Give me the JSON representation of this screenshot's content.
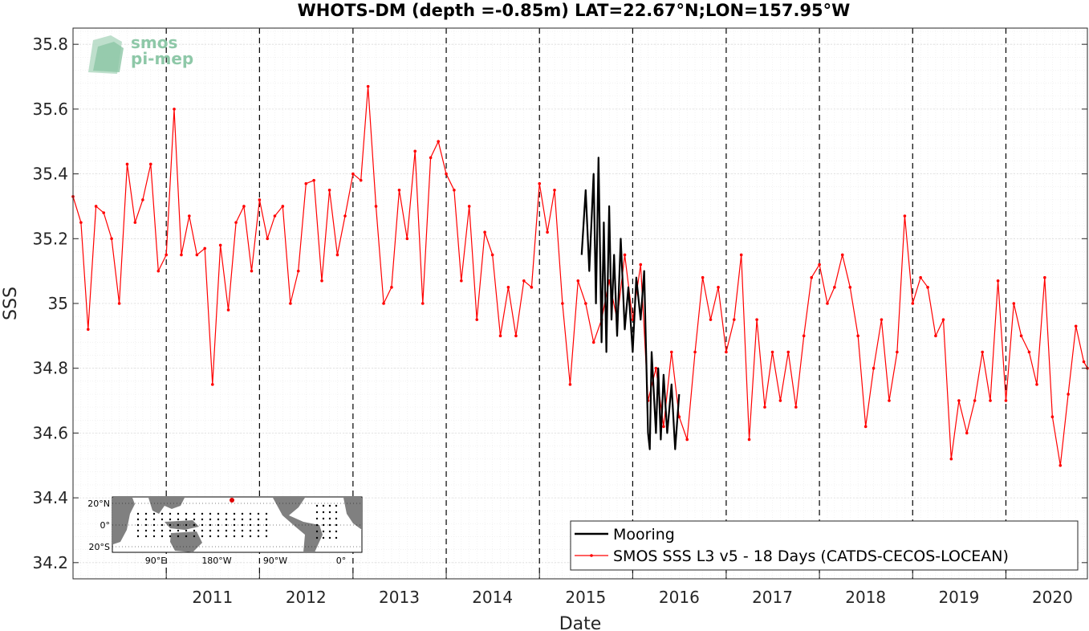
{
  "chart_data": {
    "type": "line",
    "title": "WHOTS-DM (depth =-0.85m) LAT=22.67°N;LON=157.95°W",
    "xlabel": "Date",
    "ylabel": "SSS",
    "xlim": [
      "2010-01-01",
      "2020-11-15"
    ],
    "ylim": [
      34.15,
      35.85
    ],
    "x_ticks": [
      "2011",
      "2012",
      "2013",
      "2014",
      "2015",
      "2016",
      "2017",
      "2018",
      "2019",
      "2020"
    ],
    "y_ticks": [
      "34.2",
      "34.4",
      "34.6",
      "34.8",
      "35",
      "35.2",
      "35.4",
      "35.6",
      "35.8"
    ],
    "grid": true,
    "year_markers": "dashed vertical line at each 1 January",
    "legend_position": "bottom-right",
    "logo": {
      "line1": "smos",
      "line2": "pi-mep"
    },
    "inset_map": {
      "lat_labels": [
        "20°N",
        "0°",
        "20°S"
      ],
      "lon_labels": [
        "90°E",
        "180°W",
        "90°W",
        "0°"
      ]
    },
    "series": [
      {
        "name": "Mooring",
        "color": "#000000",
        "style": "solid thick line",
        "points": [
          [
            "2015-06-15",
            35.15
          ],
          [
            "2015-07-01",
            35.35
          ],
          [
            "2015-07-15",
            35.1
          ],
          [
            "2015-08-01",
            35.4
          ],
          [
            "2015-08-10",
            35.0
          ],
          [
            "2015-08-20",
            35.45
          ],
          [
            "2015-09-01",
            34.88
          ],
          [
            "2015-09-10",
            35.25
          ],
          [
            "2015-09-20",
            34.85
          ],
          [
            "2015-10-01",
            35.3
          ],
          [
            "2015-10-10",
            34.95
          ],
          [
            "2015-10-20",
            35.15
          ],
          [
            "2015-11-01",
            34.9
          ],
          [
            "2015-11-15",
            35.2
          ],
          [
            "2015-12-01",
            34.92
          ],
          [
            "2015-12-15",
            35.05
          ],
          [
            "2016-01-01",
            34.85
          ],
          [
            "2016-01-15",
            35.08
          ],
          [
            "2016-02-01",
            34.95
          ],
          [
            "2016-02-15",
            35.1
          ],
          [
            "2016-03-01",
            34.6
          ],
          [
            "2016-03-08",
            34.55
          ],
          [
            "2016-03-15",
            34.85
          ],
          [
            "2016-04-01",
            34.6
          ],
          [
            "2016-04-10",
            34.8
          ],
          [
            "2016-04-20",
            34.58
          ],
          [
            "2016-05-01",
            34.78
          ],
          [
            "2016-05-15",
            34.6
          ],
          [
            "2016-06-01",
            34.75
          ],
          [
            "2016-06-15",
            34.55
          ],
          [
            "2016-07-01",
            34.72
          ]
        ]
      },
      {
        "name": "SMOS SSS L3 v5 - 18 Days (CATDS-CECOS-LOCEAN)",
        "color": "#ff0000",
        "style": "line with dot markers",
        "points": [
          [
            "2010-01-01",
            35.33
          ],
          [
            "2010-02-01",
            35.25
          ],
          [
            "2010-03-01",
            34.92
          ],
          [
            "2010-04-01",
            35.3
          ],
          [
            "2010-05-01",
            35.28
          ],
          [
            "2010-06-01",
            35.2
          ],
          [
            "2010-07-01",
            35.0
          ],
          [
            "2010-08-01",
            35.43
          ],
          [
            "2010-09-01",
            35.25
          ],
          [
            "2010-10-01",
            35.32
          ],
          [
            "2010-11-01",
            35.43
          ],
          [
            "2010-12-01",
            35.1
          ],
          [
            "2011-01-01",
            35.15
          ],
          [
            "2011-02-01",
            35.6
          ],
          [
            "2011-03-01",
            35.15
          ],
          [
            "2011-04-01",
            35.27
          ],
          [
            "2011-05-01",
            35.15
          ],
          [
            "2011-06-01",
            35.17
          ],
          [
            "2011-07-01",
            34.75
          ],
          [
            "2011-08-01",
            35.18
          ],
          [
            "2011-09-01",
            34.98
          ],
          [
            "2011-10-01",
            35.25
          ],
          [
            "2011-11-01",
            35.3
          ],
          [
            "2011-12-01",
            35.1
          ],
          [
            "2012-01-01",
            35.32
          ],
          [
            "2012-02-01",
            35.2
          ],
          [
            "2012-03-01",
            35.27
          ],
          [
            "2012-04-01",
            35.3
          ],
          [
            "2012-05-01",
            35.0
          ],
          [
            "2012-06-01",
            35.1
          ],
          [
            "2012-07-01",
            35.37
          ],
          [
            "2012-08-01",
            35.38
          ],
          [
            "2012-09-01",
            35.07
          ],
          [
            "2012-10-01",
            35.35
          ],
          [
            "2012-11-01",
            35.15
          ],
          [
            "2012-12-01",
            35.27
          ],
          [
            "2013-01-01",
            35.4
          ],
          [
            "2013-02-01",
            35.38
          ],
          [
            "2013-03-01",
            35.67
          ],
          [
            "2013-04-01",
            35.3
          ],
          [
            "2013-05-01",
            35.0
          ],
          [
            "2013-06-01",
            35.05
          ],
          [
            "2013-07-01",
            35.35
          ],
          [
            "2013-08-01",
            35.2
          ],
          [
            "2013-09-01",
            35.47
          ],
          [
            "2013-10-01",
            35.0
          ],
          [
            "2013-11-01",
            35.45
          ],
          [
            "2013-12-01",
            35.5
          ],
          [
            "2014-01-01",
            35.4
          ],
          [
            "2014-02-01",
            35.35
          ],
          [
            "2014-03-01",
            35.07
          ],
          [
            "2014-04-01",
            35.3
          ],
          [
            "2014-05-01",
            34.95
          ],
          [
            "2014-06-01",
            35.22
          ],
          [
            "2014-07-01",
            35.15
          ],
          [
            "2014-08-01",
            34.9
          ],
          [
            "2014-09-01",
            35.05
          ],
          [
            "2014-10-01",
            34.9
          ],
          [
            "2014-11-01",
            35.07
          ],
          [
            "2014-12-01",
            35.05
          ],
          [
            "2015-01-01",
            35.37
          ],
          [
            "2015-02-01",
            35.22
          ],
          [
            "2015-03-01",
            35.35
          ],
          [
            "2015-04-01",
            35.0
          ],
          [
            "2015-05-01",
            34.75
          ],
          [
            "2015-06-01",
            35.07
          ],
          [
            "2015-07-01",
            35.0
          ],
          [
            "2015-08-01",
            34.88
          ],
          [
            "2015-09-01",
            34.95
          ],
          [
            "2015-10-01",
            35.07
          ],
          [
            "2015-11-01",
            34.95
          ],
          [
            "2015-12-01",
            35.15
          ],
          [
            "2016-01-01",
            34.95
          ],
          [
            "2016-02-01",
            35.12
          ],
          [
            "2016-03-01",
            34.7
          ],
          [
            "2016-04-01",
            34.8
          ],
          [
            "2016-05-01",
            34.62
          ],
          [
            "2016-06-01",
            34.85
          ],
          [
            "2016-07-01",
            34.65
          ],
          [
            "2016-08-01",
            34.58
          ],
          [
            "2016-09-01",
            34.85
          ],
          [
            "2016-10-01",
            35.08
          ],
          [
            "2016-11-01",
            34.95
          ],
          [
            "2016-12-01",
            35.05
          ],
          [
            "2017-01-01",
            34.85
          ],
          [
            "2017-02-01",
            34.95
          ],
          [
            "2017-03-01",
            35.15
          ],
          [
            "2017-04-01",
            34.58
          ],
          [
            "2017-05-01",
            34.95
          ],
          [
            "2017-06-01",
            34.68
          ],
          [
            "2017-07-01",
            34.85
          ],
          [
            "2017-08-01",
            34.7
          ],
          [
            "2017-09-01",
            34.85
          ],
          [
            "2017-10-01",
            34.68
          ],
          [
            "2017-11-01",
            34.9
          ],
          [
            "2017-12-01",
            35.08
          ],
          [
            "2018-01-01",
            35.12
          ],
          [
            "2018-02-01",
            35.0
          ],
          [
            "2018-03-01",
            35.05
          ],
          [
            "2018-04-01",
            35.15
          ],
          [
            "2018-05-01",
            35.05
          ],
          [
            "2018-06-01",
            34.9
          ],
          [
            "2018-07-01",
            34.62
          ],
          [
            "2018-08-01",
            34.8
          ],
          [
            "2018-09-01",
            34.95
          ],
          [
            "2018-10-01",
            34.7
          ],
          [
            "2018-11-01",
            34.85
          ],
          [
            "2018-12-01",
            35.27
          ],
          [
            "2019-01-01",
            35.0
          ],
          [
            "2019-02-01",
            35.08
          ],
          [
            "2019-03-01",
            35.05
          ],
          [
            "2019-04-01",
            34.9
          ],
          [
            "2019-05-01",
            34.95
          ],
          [
            "2019-06-01",
            34.52
          ],
          [
            "2019-07-01",
            34.7
          ],
          [
            "2019-08-01",
            34.6
          ],
          [
            "2019-09-01",
            34.7
          ],
          [
            "2019-10-01",
            34.85
          ],
          [
            "2019-11-01",
            34.7
          ],
          [
            "2019-12-01",
            35.07
          ],
          [
            "2020-01-01",
            34.7
          ],
          [
            "2020-02-01",
            35.0
          ],
          [
            "2020-03-01",
            34.9
          ],
          [
            "2020-04-01",
            34.85
          ],
          [
            "2020-05-01",
            34.75
          ],
          [
            "2020-06-01",
            35.08
          ],
          [
            "2020-07-01",
            34.65
          ],
          [
            "2020-08-01",
            34.5
          ],
          [
            "2020-09-01",
            34.72
          ],
          [
            "2020-10-01",
            34.93
          ],
          [
            "2020-11-01",
            34.82
          ],
          [
            "2020-11-15",
            34.8
          ]
        ]
      }
    ]
  }
}
